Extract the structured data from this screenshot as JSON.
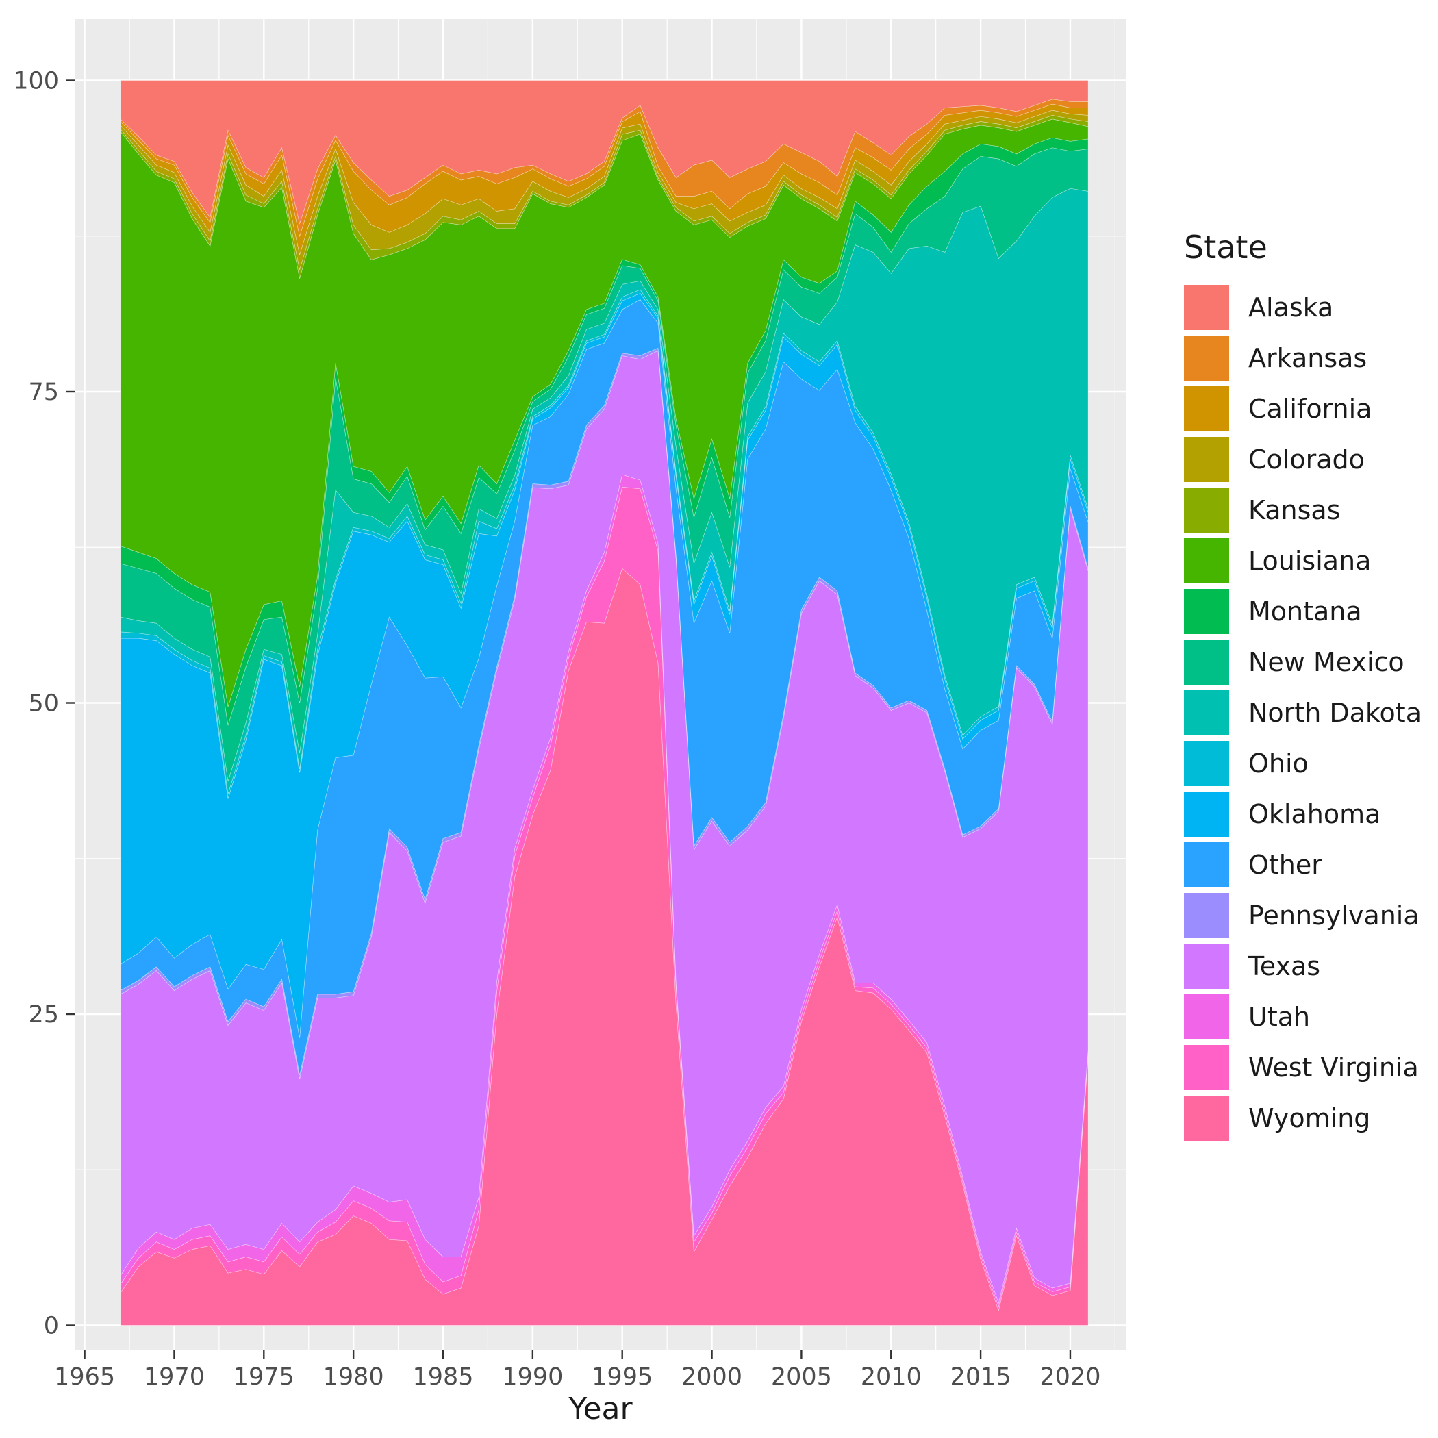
{
  "chart_data": {
    "type": "area",
    "stacked": true,
    "percent_normalized": true,
    "title": "",
    "xlabel": "Year",
    "ylabel": "",
    "legend_title": "State",
    "legend_position": "right",
    "grid": true,
    "panel_bg": "#EBEBEB",
    "grid_color": "#FFFFFF",
    "axis_text_color": "#4D4D4D",
    "axis_title_color": "#1a1a1a",
    "tick_mark_color": "#333333",
    "x_ticks": [
      1965,
      1970,
      1975,
      1980,
      1985,
      1990,
      1995,
      2000,
      2005,
      2010,
      2015,
      2020
    ],
    "y_ticks": [
      0,
      25,
      50,
      75,
      100
    ],
    "ylim": [
      0,
      100
    ],
    "xlim": [
      1967,
      2021
    ],
    "years": [
      1967,
      1968,
      1969,
      1970,
      1971,
      1972,
      1973,
      1974,
      1975,
      1976,
      1977,
      1978,
      1979,
      1980,
      1981,
      1982,
      1983,
      1984,
      1985,
      1986,
      1987,
      1988,
      1989,
      1990,
      1991,
      1992,
      1993,
      1994,
      1995,
      1996,
      1997,
      1998,
      1999,
      2000,
      2001,
      2002,
      2003,
      2004,
      2005,
      2006,
      2007,
      2008,
      2009,
      2010,
      2011,
      2012,
      2013,
      2014,
      2015,
      2016,
      2017,
      2018,
      2019,
      2020,
      2021
    ],
    "series": [
      {
        "name": "Alaska",
        "color": "#F8766D",
        "values": [
          3.1,
          4.5,
          6.0,
          6.5,
          9.0,
          11.0,
          4.0,
          7.0,
          7.8,
          5.4,
          11.5,
          7.1,
          4.4,
          6.6,
          8.0,
          9.3,
          8.8,
          7.8,
          6.8,
          7.5,
          7.2,
          7.5,
          7.0,
          6.8,
          7.5,
          8.1,
          7.5,
          6.5,
          3.0,
          2.0,
          5.4,
          7.8,
          6.8,
          6.4,
          7.8,
          7.1,
          6.5,
          5.1,
          5.8,
          6.5,
          7.7,
          4.1,
          5.0,
          6.0,
          4.5,
          3.5,
          2.2,
          2.1,
          2.0,
          2.2,
          2.5,
          2.0,
          1.5,
          1.7,
          1.7
        ]
      },
      {
        "name": "Arkansas",
        "color": "#E7851E",
        "values": [
          0.2,
          0.3,
          0.3,
          0.3,
          0.4,
          0.4,
          0.4,
          0.5,
          0.5,
          0.6,
          1.0,
          0.8,
          0.4,
          0.7,
          0.8,
          0.7,
          0.6,
          0.5,
          0.5,
          0.5,
          0.5,
          0.8,
          0.8,
          0.3,
          0.4,
          0.4,
          0.4,
          0.4,
          0.3,
          0.5,
          1.5,
          1.5,
          2.5,
          2.5,
          2.5,
          2.0,
          2.0,
          1.5,
          1.7,
          1.7,
          1.5,
          1.3,
          1.2,
          1.2,
          1.0,
          0.8,
          0.6,
          0.5,
          0.4,
          0.4,
          0.4,
          0.4,
          0.4,
          0.5,
          0.5
        ]
      },
      {
        "name": "California",
        "color": "#D09400",
        "values": [
          0.3,
          0.4,
          0.5,
          0.6,
          0.7,
          0.8,
          0.8,
          0.9,
          1.0,
          1.2,
          1.5,
          1.4,
          0.7,
          2.5,
          2.8,
          2.2,
          2.2,
          2.4,
          2.2,
          2.0,
          1.8,
          2.2,
          2.5,
          1.0,
          1.0,
          0.9,
          0.8,
          0.8,
          0.5,
          1.0,
          0.5,
          0.5,
          1.0,
          1.0,
          1.0,
          1.5,
          1.5,
          1.0,
          1.2,
          1.2,
          1.1,
          1.0,
          1.1,
          1.2,
          1.0,
          0.8,
          0.7,
          0.6,
          0.5,
          0.5,
          0.5,
          0.5,
          0.5,
          0.5,
          0.6
        ]
      },
      {
        "name": "Colorado",
        "color": "#B2A100",
        "values": [
          0.3,
          0.4,
          0.5,
          0.5,
          0.6,
          0.7,
          0.7,
          0.8,
          0.6,
          0.9,
          1.2,
          1.0,
          0.6,
          1.8,
          2.0,
          1.3,
          1.4,
          1.6,
          1.4,
          1.2,
          1.0,
          1.0,
          1.2,
          0.8,
          0.8,
          0.6,
          0.5,
          0.5,
          0.5,
          0.5,
          0.4,
          0.4,
          1.0,
          1.0,
          1.0,
          0.8,
          0.8,
          0.5,
          0.5,
          0.6,
          0.7,
          0.7,
          0.7,
          0.8,
          0.7,
          0.6,
          0.5,
          0.4,
          0.4,
          0.4,
          0.4,
          0.4,
          0.4,
          0.4,
          0.5
        ]
      },
      {
        "name": "Kansas",
        "color": "#89AC00",
        "values": [
          0.2,
          0.3,
          0.3,
          0.3,
          0.4,
          0.4,
          0.4,
          0.5,
          0.3,
          0.5,
          0.7,
          0.5,
          0.3,
          0.7,
          0.8,
          0.5,
          0.5,
          0.5,
          0.5,
          0.4,
          0.4,
          0.4,
          0.4,
          0.2,
          0.2,
          0.2,
          0.2,
          0.2,
          0.5,
          0.3,
          0.2,
          0.3,
          0.3,
          0.3,
          0.3,
          0.3,
          0.3,
          0.3,
          0.3,
          0.3,
          0.3,
          0.3,
          0.3,
          0.3,
          0.3,
          0.3,
          0.3,
          0.3,
          0.3,
          0.3,
          0.3,
          0.3,
          0.3,
          0.3,
          0.4
        ]
      },
      {
        "name": "Louisiana",
        "color": "#45B500",
        "values": [
          33.3,
          32.0,
          30.8,
          31.4,
          29.4,
          27.8,
          44.0,
          36.0,
          31.9,
          33.2,
          32.8,
          29.0,
          16.3,
          18.7,
          17.0,
          19.1,
          17.5,
          22.5,
          22.0,
          24.0,
          20.0,
          20.5,
          17.0,
          16.3,
          14.5,
          11.5,
          9.0,
          9.5,
          9.5,
          10.5,
          9.4,
          16.7,
          22.0,
          17.6,
          21.0,
          11.0,
          9.0,
          6.0,
          6.3,
          6.0,
          4.0,
          2.3,
          2.5,
          2.7,
          2.5,
          2.5,
          3.0,
          2.0,
          1.5,
          1.5,
          1.8,
          1.5,
          1.5,
          1.5,
          1.0
        ]
      },
      {
        "name": "Montana",
        "color": "#00BC51",
        "values": [
          1.4,
          1.3,
          1.2,
          1.2,
          1.2,
          1.2,
          1.5,
          1.4,
          1.2,
          1.3,
          1.3,
          1.0,
          1.2,
          1.0,
          1.0,
          0.8,
          0.8,
          0.8,
          0.8,
          0.8,
          1.0,
          0.8,
          0.8,
          0.4,
          0.4,
          0.5,
          0.4,
          0.4,
          0.5,
          0.3,
          0.3,
          0.5,
          1.5,
          1.5,
          1.5,
          0.8,
          0.8,
          0.8,
          0.8,
          0.8,
          0.5,
          1.0,
          1.0,
          1.6,
          1.5,
          1.8,
          2.0,
          1.2,
          1.0,
          1.0,
          1.0,
          0.8,
          0.8,
          0.8,
          0.8
        ]
      },
      {
        "name": "New Mexico",
        "color": "#00C087",
        "values": [
          4.3,
          4.2,
          4.0,
          4.0,
          4.0,
          4.0,
          4.5,
          4.5,
          2.4,
          3.0,
          4.0,
          3.7,
          9.0,
          2.7,
          2.6,
          2.0,
          2.2,
          1.2,
          3.5,
          4.8,
          2.5,
          2.0,
          2.0,
          0.6,
          0.7,
          1.5,
          1.2,
          1.2,
          1.5,
          1.0,
          0.7,
          1.7,
          3.7,
          4.4,
          4.0,
          2.4,
          2.5,
          2.4,
          2.4,
          2.5,
          2.0,
          2.5,
          2.0,
          1.7,
          2.0,
          3.0,
          4.5,
          3.5,
          4.0,
          8.0,
          6.0,
          5.0,
          4.0,
          3.0,
          3.4
        ]
      },
      {
        "name": "North Dakota",
        "color": "#00C0B2",
        "values": [
          1.2,
          1.0,
          1.0,
          0.9,
          0.9,
          0.9,
          1.0,
          1.0,
          0.5,
          0.6,
          1.3,
          1.2,
          7.2,
          1.2,
          1.2,
          0.9,
          1.0,
          0.8,
          0.8,
          0.8,
          1.0,
          0.8,
          0.8,
          0.6,
          0.6,
          0.8,
          0.9,
          0.9,
          1.0,
          0.7,
          0.5,
          2.1,
          3.0,
          3.2,
          3.5,
          2.7,
          2.8,
          2.7,
          2.7,
          3.0,
          3.1,
          13.0,
          14.5,
          16.1,
          22.0,
          28.0,
          34.0,
          42.0,
          41.0,
          36.0,
          27.6,
          29.0,
          34.3,
          21.5,
          25.5
        ]
      },
      {
        "name": "Ohio",
        "color": "#00BCD6",
        "values": [
          0.5,
          0.4,
          0.4,
          0.4,
          0.4,
          0.4,
          0.4,
          0.4,
          0.3,
          0.3,
          0.3,
          0.5,
          0.3,
          0.3,
          0.3,
          0.3,
          0.4,
          0.4,
          0.4,
          0.4,
          1.0,
          0.6,
          0.4,
          0.2,
          0.2,
          0.2,
          0.2,
          0.2,
          0.3,
          0.3,
          0.2,
          0.3,
          0.3,
          0.3,
          0.3,
          0.3,
          0.3,
          0.3,
          0.3,
          0.3,
          0.3,
          0.3,
          0.3,
          0.3,
          0.3,
          0.3,
          0.3,
          0.3,
          0.3,
          0.3,
          0.3,
          0.3,
          0.3,
          0.3,
          0.3
        ]
      },
      {
        "name": "Oklahoma",
        "color": "#00B3F2",
        "values": [
          26.2,
          25.3,
          23.8,
          24.4,
          22.4,
          21.0,
          15.3,
          18.0,
          24.9,
          22.0,
          21.3,
          14.0,
          14.0,
          18.0,
          12.0,
          6.0,
          10.0,
          9.5,
          9.0,
          8.0,
          10.0,
          4.0,
          2.5,
          0.5,
          0.7,
          0.5,
          0.5,
          0.5,
          0.7,
          0.5,
          0.4,
          1.0,
          1.5,
          2.0,
          1.5,
          1.5,
          1.5,
          2.0,
          2.0,
          2.0,
          2.0,
          1.0,
          1.0,
          1.0,
          1.0,
          1.0,
          0.8,
          0.8,
          0.8,
          0.8,
          0.8,
          0.8,
          0.8,
          0.8,
          0.8
        ]
      },
      {
        "name": "Other",
        "color": "#29A3FF",
        "values": [
          2.1,
          2.2,
          2.4,
          2.3,
          2.5,
          2.6,
          2.6,
          2.8,
          3.0,
          3.2,
          3.0,
          13.2,
          19.0,
          19.0,
          20.0,
          17.0,
          16.2,
          17.8,
          13.0,
          10.0,
          7.0,
          6.5,
          6.0,
          4.7,
          5.5,
          7.0,
          6.1,
          5.0,
          3.5,
          4.5,
          2.0,
          5.3,
          17.9,
          19.0,
          16.8,
          29.5,
          30.0,
          28.3,
          18.5,
          15.0,
          17.8,
          20.1,
          19.0,
          17.5,
          13.0,
          8.0,
          6.4,
          6.9,
          7.7,
          7.1,
          5.4,
          7.5,
          6.7,
          3.0,
          3.7
        ]
      },
      {
        "name": "Pennsylvania",
        "color": "#9C8DFF",
        "values": [
          0.3,
          0.3,
          0.3,
          0.3,
          0.3,
          0.3,
          0.3,
          0.3,
          0.3,
          0.3,
          0.3,
          0.3,
          0.3,
          0.3,
          0.3,
          0.3,
          0.3,
          0.3,
          0.3,
          0.3,
          0.3,
          0.3,
          0.3,
          0.3,
          0.3,
          0.3,
          0.3,
          0.3,
          0.2,
          0.3,
          0.2,
          0.3,
          0.3,
          0.3,
          0.3,
          0.3,
          0.3,
          0.3,
          0.3,
          0.3,
          0.3,
          0.2,
          0.2,
          0.2,
          0.2,
          0.2,
          0.2,
          0.2,
          0.2,
          0.2,
          0.2,
          0.2,
          0.2,
          0.2,
          0.2
        ]
      },
      {
        "name": "Texas",
        "color": "#D277FF",
        "values": [
          22.6,
          21.2,
          21.0,
          20.0,
          20.0,
          20.4,
          18.0,
          19.4,
          19.2,
          19.3,
          13.1,
          18.0,
          17.0,
          15.3,
          20.6,
          29.7,
          28.0,
          27.0,
          33.3,
          33.8,
          36.0,
          25.0,
          20.0,
          24.3,
          20.0,
          13.4,
          13.0,
          11.5,
          9.5,
          9.7,
          15.5,
          34.0,
          31.0,
          31.0,
          26.0,
          25.0,
          24.2,
          29.6,
          31.8,
          30.0,
          24.9,
          24.7,
          23.7,
          23.2,
          25.5,
          26.5,
          26.9,
          27.3,
          34.0,
          39.5,
          45.0,
          47.5,
          45.3,
          62.4,
          38.5
        ]
      },
      {
        "name": "Utah",
        "color": "#F166E8",
        "values": [
          0.7,
          0.8,
          0.8,
          0.8,
          0.9,
          0.9,
          1.0,
          1.0,
          1.0,
          1.1,
          1.0,
          0.8,
          1.0,
          1.2,
          1.2,
          1.5,
          1.8,
          2.0,
          2.0,
          1.5,
          1.0,
          0.8,
          0.6,
          0.6,
          0.6,
          0.5,
          0.5,
          0.7,
          1.0,
          0.7,
          0.6,
          0.5,
          0.5,
          0.5,
          0.5,
          0.5,
          0.5,
          0.5,
          0.5,
          0.5,
          0.5,
          0.3,
          0.4,
          0.4,
          0.4,
          0.4,
          0.4,
          0.3,
          0.3,
          0.3,
          0.3,
          0.3,
          0.3,
          0.3,
          0.3
        ]
      },
      {
        "name": "West Virginia",
        "color": "#FF61C7",
        "values": [
          0.7,
          0.7,
          0.8,
          0.7,
          0.8,
          0.8,
          0.9,
          1.0,
          1.0,
          1.1,
          1.0,
          0.8,
          1.0,
          1.2,
          1.2,
          1.5,
          1.5,
          1.2,
          1.0,
          1.0,
          1.3,
          1.8,
          1.7,
          1.4,
          2.0,
          1.0,
          2.0,
          5.0,
          6.5,
          7.7,
          9.0,
          1.3,
          0.8,
          0.5,
          0.8,
          0.8,
          0.8,
          0.5,
          0.5,
          0.5,
          0.5,
          0.3,
          0.4,
          0.4,
          0.4,
          0.4,
          0.4,
          0.3,
          0.3,
          0.3,
          0.3,
          0.3,
          0.3,
          0.3,
          0.3
        ]
      },
      {
        "name": "Wyoming",
        "color": "#FF689E",
        "values": [
          2.6,
          4.7,
          5.9,
          5.4,
          6.1,
          6.4,
          4.2,
          4.5,
          4.1,
          6.0,
          4.7,
          6.7,
          7.3,
          8.8,
          8.2,
          6.9,
          6.8,
          3.7,
          2.5,
          3.0,
          8.0,
          25.0,
          36.0,
          41.0,
          44.6,
          52.6,
          56.5,
          56.4,
          60.5,
          59.5,
          53.2,
          25.8,
          5.9,
          8.5,
          11.2,
          13.5,
          16.2,
          18.2,
          24.4,
          28.8,
          32.8,
          26.9,
          26.7,
          25.4,
          23.7,
          21.9,
          16.8,
          11.3,
          5.3,
          1.2,
          7.2,
          3.2,
          2.4,
          2.8,
          21.5
        ]
      }
    ]
  }
}
